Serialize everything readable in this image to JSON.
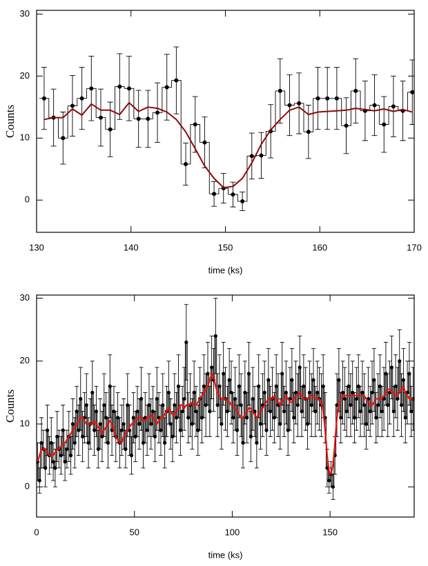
{
  "chart_data": [
    {
      "type": "line",
      "xlabel": "time (ks)",
      "ylabel": "Counts",
      "x": [
        130.8,
        131.8,
        132.8,
        133.8,
        134.8,
        135.8,
        136.8,
        137.8,
        138.8,
        139.8,
        140.8,
        141.8,
        142.8,
        143.8,
        144.8,
        145.8,
        146.8,
        147.8,
        148.8,
        149.8,
        150.8,
        151.8,
        152.8,
        153.8,
        154.8,
        155.8,
        156.8,
        157.8,
        158.8,
        159.8,
        160.8,
        161.8,
        162.8,
        163.8,
        164.8,
        165.8,
        166.8,
        167.8,
        168.8,
        169.8
      ],
      "xlim": [
        130,
        170
      ],
      "ylim": [
        -5.2,
        30.6
      ],
      "xticks": [
        130,
        140,
        150,
        160,
        170
      ],
      "yticks": [
        0,
        10,
        20,
        30
      ],
      "series": [
        {
          "color": "#000000",
          "step": true,
          "markers": true,
          "values": [
            16.4,
            13.3,
            10,
            15.2,
            16.4,
            18,
            13.3,
            11.4,
            18.3,
            18,
            13.1,
            13.1,
            14.1,
            18.2,
            19.3,
            5.8,
            12.2,
            9.3,
            1,
            1.9,
            0.9,
            -0.2,
            7.1,
            7.2,
            11.1,
            17.6,
            15.3,
            15.6,
            11,
            16.4,
            16.4,
            16.4,
            12,
            17.6,
            14.4,
            15.3,
            12.2,
            15.1,
            14.4,
            17.4
          ],
          "errors": [
            5,
            4.6,
            4.2,
            4.9,
            5,
            5.2,
            4.6,
            4.4,
            5.3,
            5.2,
            4.6,
            4.6,
            4.8,
            5.3,
            5.4,
            3.4,
            4.5,
            4.1,
            2,
            2.4,
            2,
            1.5,
            3.7,
            3.7,
            4.3,
            5.2,
            4.9,
            4.9,
            4.3,
            5,
            5,
            5,
            4.5,
            5.2,
            4.8,
            4.9,
            4.5,
            4.9,
            4.8,
            5.2
          ]
        },
        {
          "color": "#8b0a0a",
          "values": [
            13,
            13.3,
            13.3,
            14.7,
            13.7,
            15.5,
            14.5,
            14.5,
            13.8,
            15.7,
            14.3,
            15,
            14.8,
            14.2,
            13,
            11,
            8.3,
            5.5,
            3.5,
            2,
            2.2,
            3.5,
            6,
            9,
            11.3,
            13,
            14.5,
            15,
            13.8,
            14.2,
            14.3,
            14.4,
            14.5,
            14.8,
            14.6,
            14.4,
            14.7,
            14.3,
            14.6,
            14.2
          ]
        }
      ]
    },
    {
      "type": "line",
      "xlabel": "time (ks)",
      "ylabel": "Counts",
      "x": [
        0.5,
        1.5,
        2.5,
        3.5,
        4.5,
        5.5,
        6.5,
        7.5,
        8.5,
        9.5,
        10.5,
        11.5,
        12.5,
        13.5,
        14.5,
        15.5,
        16.5,
        17.5,
        18.5,
        19.5,
        20.5,
        21.5,
        22.5,
        23.5,
        24.5,
        25.5,
        26.5,
        27.5,
        28.5,
        29.5,
        30.5,
        31.5,
        32.5,
        33.5,
        34.5,
        35.5,
        36.5,
        37.5,
        38.5,
        39.5,
        40.5,
        41.5,
        42.5,
        43.5,
        44.5,
        45.5,
        46.5,
        47.5,
        48.5,
        49.5,
        50.5,
        51.5,
        52.5,
        53.5,
        54.5,
        55.5,
        56.5,
        57.5,
        58.5,
        59.5,
        60.5,
        61.5,
        62.5,
        63.5,
        64.5,
        65.5,
        66.5,
        67.5,
        68.5,
        69.5,
        70.5,
        71.5,
        72.5,
        73.5,
        74.5,
        75.5,
        76.5,
        77.5,
        78.5,
        79.5,
        80.5,
        81.5,
        82.5,
        83.5,
        84.5,
        85.5,
        86.5,
        87.5,
        88.5,
        89.5,
        90.5,
        91.5,
        92.5,
        93.5,
        94.5,
        95.5,
        96.5,
        97.5,
        98.5,
        99.5,
        100.5,
        101.5,
        102.5,
        103.5,
        104.5,
        105.5,
        106.5,
        107.5,
        108.5,
        109.5,
        110.5,
        111.5,
        112.5,
        113.5,
        114.5,
        115.5,
        116.5,
        117.5,
        118.5,
        119.5,
        120.5,
        121.5,
        122.5,
        123.5,
        124.5,
        125.5,
        126.5,
        127.5,
        128.5,
        129.5,
        130.5,
        131.5,
        132.5,
        133.5,
        134.5,
        135.5,
        136.5,
        137.5,
        138.5,
        139.5,
        140.5,
        141.5,
        142.5,
        143.5,
        144.5,
        145.5,
        146.5,
        147.5,
        148.5,
        149.5,
        150.5,
        151.5,
        152.5,
        153.5,
        154.5,
        155.5,
        156.5,
        157.5,
        158.5,
        159.5,
        160.5,
        161.5,
        162.5,
        163.5,
        164.5,
        165.5,
        166.5,
        167.5,
        168.5,
        169.5,
        170.5,
        171.5,
        172.5,
        173.5,
        174.5,
        175.5,
        176.5,
        177.5,
        178.5,
        179.5,
        180.5,
        181.5,
        182.5,
        183.5,
        184.5,
        185.5,
        186.5,
        187.5,
        188.5,
        189.5,
        190.5,
        191.5,
        192.5
      ],
      "xlim": [
        0,
        193
      ],
      "ylim": [
        -4.8,
        30.5
      ],
      "xticks": [
        0,
        50,
        100,
        150
      ],
      "yticks": [
        0,
        10,
        20,
        30
      ],
      "series": [
        {
          "color": "#000000",
          "step": true,
          "markers": true,
          "values": [
            4,
            1,
            7,
            6,
            3,
            9,
            5,
            7,
            4,
            3,
            8,
            6,
            5,
            9,
            4,
            6,
            8,
            5,
            10,
            7,
            12,
            9,
            14,
            8,
            11,
            13,
            7,
            10,
            15,
            9,
            12,
            6,
            10,
            8,
            13,
            11,
            7,
            16,
            9,
            12,
            8,
            11,
            7,
            9,
            10,
            6,
            13,
            9,
            5,
            11,
            8,
            12,
            10,
            14,
            7,
            11,
            9,
            13,
            10,
            12,
            8,
            14,
            11,
            9,
            13,
            7,
            12,
            15,
            10,
            8,
            13,
            11,
            16,
            9,
            12,
            14,
            23,
            11,
            13,
            10,
            15,
            12,
            9,
            14,
            11,
            16,
            13,
            18,
            12,
            19,
            17,
            24,
            13,
            16,
            10,
            18,
            14,
            12,
            17,
            15,
            11,
            14,
            9,
            16,
            13,
            7,
            15,
            11,
            18,
            8,
            14,
            12,
            7,
            16,
            10,
            13,
            15,
            9,
            17,
            12,
            14,
            11,
            16,
            13,
            10,
            18,
            12,
            15,
            9,
            14,
            17,
            11,
            15,
            13,
            19,
            12,
            16,
            14,
            10,
            15,
            13,
            17,
            12,
            15,
            14,
            13,
            16,
            11,
            3,
            1,
            2,
            0,
            5,
            13,
            17,
            11,
            15,
            14,
            12,
            16,
            13,
            15,
            11,
            14,
            16,
            12,
            15,
            13,
            10,
            14,
            12,
            15,
            17,
            11,
            13,
            16,
            12,
            14,
            18,
            13,
            15,
            19,
            12,
            16,
            14,
            20,
            13,
            17,
            11,
            15,
            18,
            12,
            14
          ],
          "errors": [
            3,
            2,
            4,
            3,
            3,
            4,
            3,
            4,
            3,
            3,
            4,
            3,
            3,
            4,
            3,
            3,
            4,
            3,
            4,
            4,
            4,
            4,
            5,
            4,
            4,
            5,
            4,
            4,
            5,
            4,
            4,
            3,
            4,
            4,
            5,
            4,
            4,
            5,
            4,
            4,
            4,
            4,
            4,
            4,
            4,
            3,
            5,
            4,
            3,
            4,
            4,
            4,
            4,
            5,
            4,
            4,
            4,
            5,
            4,
            4,
            4,
            5,
            4,
            4,
            5,
            4,
            4,
            5,
            4,
            4,
            5,
            4,
            5,
            4,
            4,
            5,
            6,
            4,
            5,
            4,
            5,
            4,
            4,
            5,
            4,
            5,
            5,
            5,
            4,
            5,
            5,
            6,
            5,
            5,
            4,
            5,
            5,
            4,
            5,
            5,
            4,
            5,
            4,
            5,
            5,
            4,
            5,
            4,
            5,
            4,
            5,
            4,
            4,
            5,
            4,
            5,
            5,
            4,
            5,
            4,
            5,
            4,
            5,
            5,
            4,
            5,
            4,
            5,
            4,
            5,
            5,
            4,
            5,
            5,
            5,
            4,
            5,
            5,
            4,
            5,
            5,
            5,
            4,
            5,
            5,
            5,
            5,
            4,
            3,
            2,
            2,
            2,
            3,
            5,
            5,
            4,
            5,
            5,
            4,
            5,
            5,
            5,
            4,
            5,
            5,
            4,
            5,
            5,
            4,
            5,
            4,
            5,
            5,
            4,
            5,
            5,
            4,
            5,
            5,
            5,
            5,
            5,
            4,
            5,
            5,
            5,
            5,
            5,
            4,
            5,
            5,
            4,
            5
          ]
        },
        {
          "color": "#e8120c",
          "values": [
            4,
            5,
            6,
            6,
            6,
            5.5,
            5,
            5,
            5,
            5.5,
            6,
            6,
            6.5,
            7,
            7,
            7.5,
            8,
            8.5,
            9,
            9.5,
            10,
            10.5,
            11,
            11,
            10.5,
            10,
            10,
            10,
            10,
            10.5,
            10,
            9.5,
            9,
            8.5,
            9,
            9.5,
            10,
            10.5,
            10,
            9,
            8,
            7.5,
            7,
            7,
            8,
            8.5,
            9,
            9.5,
            10,
            10,
            10.5,
            11,
            11,
            11,
            10.5,
            10.5,
            11,
            11,
            11.5,
            11,
            10.5,
            10,
            10.5,
            11,
            11,
            11.5,
            12,
            12.5,
            12,
            11.5,
            11.5,
            12,
            12.5,
            13,
            13,
            12.5,
            13,
            13,
            13,
            13.5,
            13,
            13,
            13.5,
            14,
            14.5,
            15,
            15.5,
            16,
            17,
            18,
            17.5,
            16,
            15,
            14.5,
            14,
            14,
            14,
            13.5,
            13.5,
            13,
            13,
            12.5,
            12,
            11.5,
            11,
            11,
            11.5,
            12,
            12.5,
            12.5,
            12,
            11.5,
            11,
            11.5,
            12,
            12.5,
            13,
            13.5,
            14,
            14,
            14,
            14.5,
            14,
            13.5,
            13,
            13.5,
            14,
            14.5,
            14,
            13.5,
            13.5,
            14,
            14.5,
            14.5,
            15,
            14.5,
            14,
            14,
            14,
            14.5,
            14.5,
            14.5,
            14,
            14,
            14,
            13.5,
            12,
            9,
            5,
            2.5,
            2,
            3.5,
            7,
            11,
            13,
            14,
            14.5,
            14.5,
            14.5,
            14.5,
            14.5,
            14.5,
            14.5,
            14.5,
            14.5,
            14.5,
            14.5,
            14.5,
            14,
            13.5,
            13,
            13,
            13.5,
            14,
            14,
            14,
            14,
            14.5,
            15,
            15.5,
            15.5,
            15,
            15,
            14.5,
            14.5,
            15,
            15.5,
            16,
            15,
            14.5,
            14,
            14,
            14
          ]
        }
      ]
    }
  ]
}
